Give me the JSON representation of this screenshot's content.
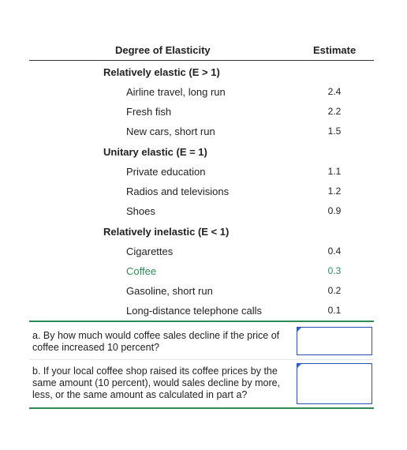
{
  "table": {
    "header": {
      "degree": "Degree of Elasticity",
      "estimate": "Estimate"
    },
    "groups": [
      {
        "label": "Relatively elastic (E > 1)",
        "rows": [
          {
            "name": "Airline travel, long run",
            "value": "2.4"
          },
          {
            "name": "Fresh fish",
            "value": "2.2"
          },
          {
            "name": "New cars, short run",
            "value": "1.5"
          }
        ]
      },
      {
        "label": "Unitary elastic (E = 1)",
        "rows": [
          {
            "name": "Private education",
            "value": "1.1"
          },
          {
            "name": "Radios and televisions",
            "value": "1.2"
          },
          {
            "name": "Shoes",
            "value": "0.9"
          }
        ]
      },
      {
        "label": "Relatively inelastic (E < 1)",
        "rows": [
          {
            "name": "Cigarettes",
            "value": "0.4"
          },
          {
            "name": "Coffee",
            "value": "0.3"
          },
          {
            "name": "Gasoline, short run",
            "value": "0.2"
          },
          {
            "name": "Long-distance telephone calls",
            "value": "0.1"
          }
        ]
      }
    ]
  },
  "highlight_color": "#2e8b57",
  "questions": [
    {
      "text": "a. By how much would coffee sales decline if the price of coffee increased 10 percent?",
      "answer": ""
    },
    {
      "text": "b. If your local coffee shop raised its coffee prices by the same amount (10 percent), would sales decline by more, less, or the same amount as calculated in part a?",
      "answer": ""
    }
  ]
}
